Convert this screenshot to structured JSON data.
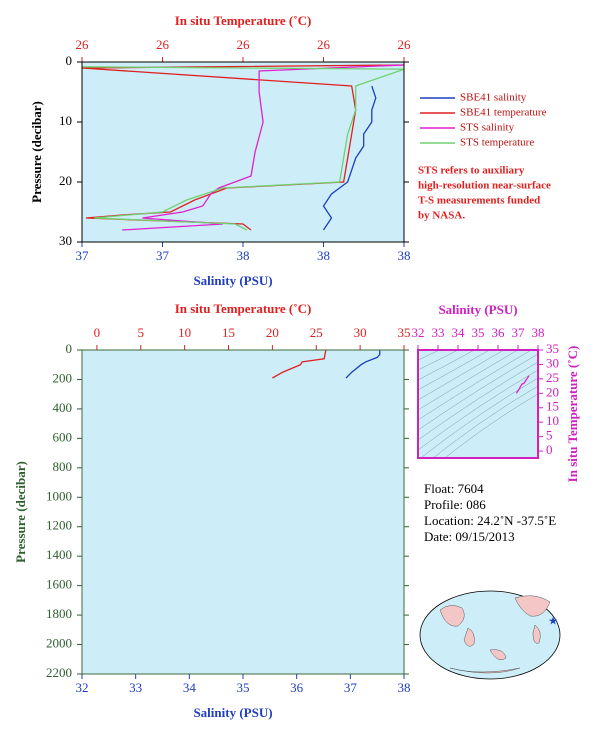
{
  "chart_data": [
    {
      "type": "profile",
      "x_label": "Salinity (PSU)",
      "x2_label": "In situ Temperature (˚C)",
      "y_label": "Pressure (decibar)",
      "xlim": [
        37.2,
        38.0
      ],
      "xticks": [
        {
          "value": 37.2,
          "label": "37"
        },
        {
          "value": 37.4,
          "label": "37"
        },
        {
          "value": 37.6,
          "label": "38"
        },
        {
          "value": 37.8,
          "label": "38"
        },
        {
          "value": 38.0,
          "label": "38"
        }
      ],
      "x2lim": [
        25.6,
        26.4
      ],
      "x2ticks": [
        {
          "value": 25.6,
          "label": "26"
        },
        {
          "value": 25.8,
          "label": "26"
        },
        {
          "value": 26.0,
          "label": "26"
        },
        {
          "value": 26.2,
          "label": "26"
        },
        {
          "value": 26.4,
          "label": "26"
        }
      ],
      "ylim": [
        0,
        30
      ],
      "yticks": [
        0,
        10,
        20,
        30
      ],
      "series": [
        {
          "name": "SBE41 salinity",
          "color": "#1f3fbf",
          "axis": "x",
          "pressure": [
            4,
            6,
            8,
            10,
            12,
            14,
            16,
            18,
            20,
            21,
            22,
            24,
            26,
            28
          ],
          "values": [
            37.92,
            37.93,
            37.92,
            37.92,
            37.9,
            37.9,
            37.88,
            37.87,
            37.86,
            37.84,
            37.82,
            37.8,
            37.82,
            37.8
          ]
        },
        {
          "name": "SBE41 temperature",
          "color": "#e02020",
          "axis": "x2",
          "pressure": [
            0.5,
            1,
            4,
            8,
            12,
            16,
            20,
            21,
            23,
            25,
            25.5,
            26,
            27,
            28
          ],
          "values": [
            26.4,
            25.6,
            26.27,
            26.28,
            26.27,
            26.26,
            26.25,
            25.96,
            25.88,
            25.82,
            25.7,
            25.61,
            26.0,
            26.02
          ]
        },
        {
          "name": "STS salinity",
          "color": "#e020d0",
          "axis": "x",
          "pressure": [
            0.5,
            1.5,
            5,
            10,
            15,
            19,
            20,
            21,
            22,
            24,
            25,
            26,
            27,
            28
          ],
          "values": [
            38.0,
            37.64,
            37.64,
            37.65,
            37.63,
            37.62,
            37.58,
            37.54,
            37.52,
            37.5,
            37.45,
            37.35,
            37.55,
            37.3
          ]
        },
        {
          "name": "STS temperature",
          "color": "#70d070",
          "axis": "x2",
          "pressure": [
            0.8,
            1.2,
            4,
            8,
            12,
            16,
            20,
            21,
            23,
            25,
            26,
            27,
            28
          ],
          "values": [
            25.6,
            26.4,
            26.28,
            26.28,
            26.26,
            26.25,
            26.24,
            25.95,
            25.86,
            25.8,
            25.63,
            25.98,
            26.01
          ]
        }
      ],
      "annotation": [
        "STS refers to auxiliary",
        "high-resolution near-surface",
        "T-S measurements funded",
        "by NASA."
      ]
    },
    {
      "type": "profile",
      "x_label": "Salinity (PSU)",
      "x2_label": "In situ Temperature (˚C)",
      "y_label": "Pressure (decibar)",
      "xlim": [
        32,
        38
      ],
      "xticks": [
        32,
        33,
        34,
        35,
        36,
        37,
        38
      ],
      "x2lim": [
        -1.7,
        35
      ],
      "x2ticks": [
        0,
        5,
        10,
        15,
        20,
        25,
        30,
        35
      ],
      "ylim": [
        0,
        2200
      ],
      "yticks": [
        0,
        200,
        400,
        600,
        800,
        1000,
        1200,
        1400,
        1600,
        1800,
        2000,
        2200
      ],
      "series": [
        {
          "color": "#e02020",
          "axis": "x2",
          "pressure": [
            0,
            30,
            60,
            80,
            100,
            150,
            190
          ],
          "values": [
            26.1,
            26.0,
            25.9,
            23.4,
            23.2,
            21.2,
            20.0
          ]
        },
        {
          "color": "#1f3fbf",
          "axis": "x",
          "pressure": [
            0,
            30,
            50,
            80,
            100,
            150,
            190
          ],
          "values": [
            37.55,
            37.55,
            37.5,
            37.29,
            37.2,
            37.03,
            36.92
          ]
        }
      ]
    },
    {
      "type": "ts",
      "x_label": "Salinity (PSU)",
      "y_label": "In situ Temperature (˚C)",
      "xlim": [
        32,
        38
      ],
      "xticks": [
        32,
        33,
        34,
        35,
        36,
        37,
        38
      ],
      "ylim": [
        -2.4,
        35
      ],
      "yticks": [
        0,
        5,
        10,
        15,
        20,
        25,
        30,
        35
      ],
      "series": [
        {
          "color": "#e020d0",
          "x": [
            37.55,
            37.29,
            37.2,
            37.03,
            36.92
          ],
          "values": [
            26.1,
            23.4,
            23.2,
            21.2,
            20.0
          ]
        }
      ]
    }
  ],
  "info": [
    "Float:  7604",
    "Profile:  086",
    "Location:  24.2˚N  -37.5˚E",
    "Date:  09/15/2013"
  ]
}
